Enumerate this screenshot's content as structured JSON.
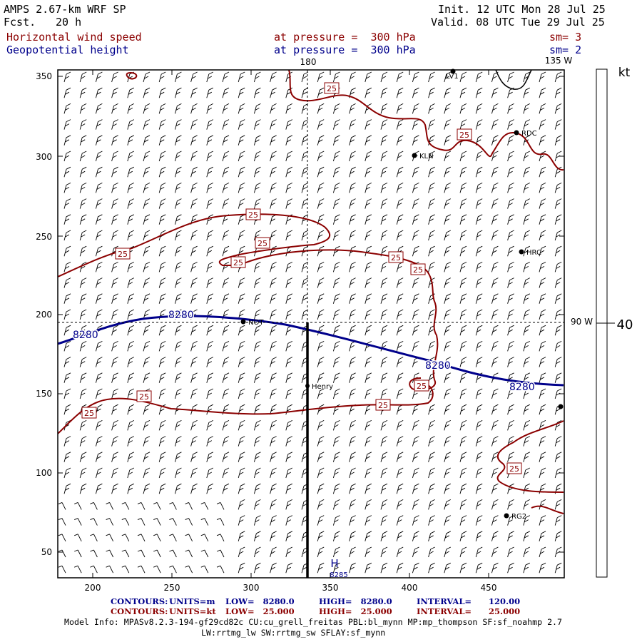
{
  "header": {
    "model": "AMPS 2.67-km WRF SP",
    "fcst_label": "Fcst.",
    "fcst_value": "20 h",
    "init": "Init. 12 UTC Mon 28 Jul 25",
    "valid": "Valid. 08 UTC Tue 29 Jul 25",
    "field1": "Horizontal wind speed",
    "field2": "Geopotential height",
    "level1": "at pressure =  300 hPa",
    "level2": "at pressure =  300 hPa",
    "sm1": "sm= 3",
    "sm2": "sm= 2"
  },
  "map": {
    "x_ticks": [
      "200",
      "250",
      "300",
      "350",
      "400",
      "450"
    ],
    "y_ticks": [
      "350",
      "300",
      "250",
      "200",
      "150",
      "100",
      "50"
    ],
    "lon_label_top_180": "180",
    "lon_label_top_135w": "135 W",
    "lon_label_right_90w": "90 W",
    "height_contour_labels": [
      "8280",
      "8280",
      "8280",
      "8280"
    ],
    "speed_contour_label": "25",
    "high_marker": "H",
    "high_value": "8285",
    "stations": [
      "LV1",
      "RDC",
      "KLN",
      "HRC",
      "NOT",
      "Henry",
      "RG2"
    ]
  },
  "colorbar": {
    "unit": "kt",
    "value": "40"
  },
  "footer": {
    "line1_contours": "CONTOURS:",
    "line1_units": "UNITS=m",
    "line1_low": "LOW=   8280.0",
    "line1_high": "HIGH=   8280.0",
    "line1_interval": "INTERVAL=      120.00",
    "line2_contours": "CONTOURS:",
    "line2_units": "UNITS=kt",
    "line2_low": "LOW=   25.000",
    "line2_high": "HIGH=   25.000",
    "line2_interval": "INTERVAL=      25.000",
    "model_info": "Model Info: MPASv8.2.3-194-gf29cd82c CU:cu_grell_freitas PBL:bl_mynn MP:mp_thompson SF:sf_noahmp 2.7",
    "model_info2": "LW:rrtmg_lw SW:rrtmg_sw SFLAY:sf_mynn"
  },
  "colors": {
    "height_contour": "#00008b",
    "speed_contour": "#8b0000",
    "barbs": "#000000"
  }
}
